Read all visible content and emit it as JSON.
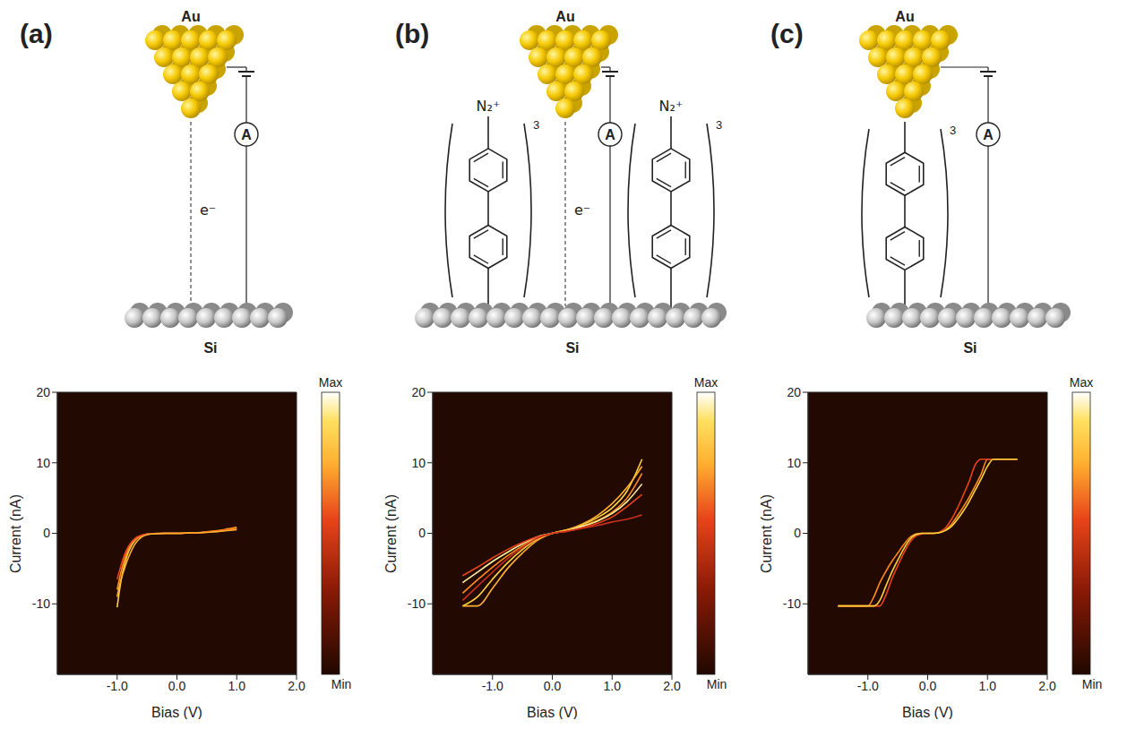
{
  "schematics": [
    {
      "label": "(a)",
      "tip": "Au",
      "surface": "Si",
      "electron": "e⁻",
      "meter": "A"
    },
    {
      "label": "(b)",
      "tip": "Au",
      "surface": "Si",
      "electron": "e⁻",
      "meter": "A",
      "molecule": {
        "repeat": 3,
        "end_group": "N₂⁺"
      }
    },
    {
      "label": "(c)",
      "tip": "Au",
      "surface": "Si",
      "meter": "A",
      "molecule": {
        "repeat": 3
      }
    }
  ],
  "chart_data": [
    {
      "type": "line",
      "x_label": "Bias (V)",
      "y_label": "Current (nA)",
      "xlim": [
        -2,
        2
      ],
      "ylim": [
        -20,
        20
      ],
      "xticks": [
        {
          "value": -1,
          "label": "-1.0"
        },
        {
          "value": 0,
          "label": "0.0"
        },
        {
          "value": 1,
          "label": "1.0"
        },
        {
          "value": 2,
          "label": "2.0"
        }
      ],
      "yticks": [
        -10,
        0,
        10,
        20
      ],
      "grid": false,
      "x": [
        -1.0,
        -0.95,
        -0.9,
        -0.85,
        -0.8,
        -0.7,
        -0.6,
        -0.5,
        -0.4,
        -0.2,
        0,
        0.2,
        0.4,
        0.6,
        0.8,
        1.0
      ],
      "series": [
        {
          "color": "#ffd23c",
          "values": [
            -10.5,
            -7.5,
            -5.2,
            -3.6,
            -2.4,
            -1.0,
            -0.4,
            -0.15,
            -0.05,
            0,
            0,
            0.05,
            0.1,
            0.25,
            0.45,
            0.7
          ]
        },
        {
          "color": "#ff8c1a",
          "values": [
            -8,
            -6,
            -4.3,
            -3,
            -2,
            -0.9,
            -0.35,
            -0.1,
            -0.05,
            0,
            0,
            0.05,
            0.12,
            0.3,
            0.55,
            0.9
          ]
        },
        {
          "color": "#e8441a",
          "values": [
            -6.5,
            -5,
            -3.6,
            -2.5,
            -1.7,
            -0.7,
            -0.3,
            -0.1,
            -0.03,
            0,
            0,
            0.04,
            0.1,
            0.22,
            0.4,
            0.6
          ]
        },
        {
          "color": "#ffb030",
          "values": [
            -9,
            -7,
            -5.6,
            -4.3,
            -3.2,
            -1.5,
            -0.6,
            -0.2,
            -0.08,
            0,
            0,
            0.05,
            0.1,
            0.2,
            0.35,
            0.5
          ]
        }
      ],
      "colorbar": {
        "range": [
          0,
          1
        ],
        "ticks": [
          {
            "value": 1,
            "label": "Max"
          },
          {
            "value": 0,
            "label": "Min"
          }
        ]
      }
    },
    {
      "type": "line",
      "x_label": "Bias (V)",
      "y_label": "Current (nA)",
      "xlim": [
        -2,
        2
      ],
      "ylim": [
        -20,
        20
      ],
      "xticks": [
        {
          "value": -1,
          "label": "-1.0"
        },
        {
          "value": 0,
          "label": "0.0"
        },
        {
          "value": 1,
          "label": "1.0"
        },
        {
          "value": 2,
          "label": "2.0"
        }
      ],
      "yticks": [
        -10,
        0,
        10,
        20
      ],
      "grid": false,
      "x": [
        -1.5,
        -1.25,
        -1.0,
        -0.75,
        -0.5,
        -0.25,
        0,
        0.25,
        0.5,
        0.75,
        1.0,
        1.25,
        1.5
      ],
      "series": [
        {
          "color": "#ffd23c",
          "values": [
            -10.3,
            -9,
            -6.5,
            -4.2,
            -2.3,
            -0.8,
            0,
            0.5,
            1.2,
            2.2,
            3.6,
            6,
            10.5
          ]
        },
        {
          "color": "#ff8c1a",
          "values": [
            -8.5,
            -6.6,
            -4.8,
            -3.2,
            -1.8,
            -0.6,
            0,
            0.4,
            1,
            1.8,
            3,
            5,
            8.5
          ]
        },
        {
          "color": "#fff0a0",
          "values": [
            -7,
            -5.5,
            -4,
            -2.7,
            -1.5,
            -0.5,
            0,
            0.4,
            1,
            1.7,
            2.8,
            4.5,
            7
          ]
        },
        {
          "color": "#e8441a",
          "values": [
            -6,
            -4.8,
            -3.5,
            -2.3,
            -1.3,
            -0.5,
            0,
            0.3,
            0.8,
            1.4,
            2.3,
            3.8,
            5.5
          ]
        },
        {
          "color": "#ffb030",
          "values": [
            -10.3,
            -10.3,
            -7.8,
            -5,
            -2.8,
            -1,
            0,
            0.5,
            1.3,
            2.5,
            4.2,
            6.5,
            9.5
          ]
        },
        {
          "color": "#c8301a",
          "values": [
            -9.5,
            -7.5,
            -5.5,
            -3.6,
            -2,
            -0.7,
            0,
            0.3,
            0.7,
            1.1,
            1.6,
            2,
            2.6
          ]
        }
      ],
      "colorbar": {
        "range": [
          0,
          1
        ],
        "ticks": [
          {
            "value": 1,
            "label": "Max"
          },
          {
            "value": 0,
            "label": "Min"
          }
        ]
      }
    },
    {
      "type": "line",
      "x_label": "Bias (V)",
      "y_label": "Current (nA)",
      "xlim": [
        -2,
        2
      ],
      "ylim": [
        -20,
        20
      ],
      "xticks": [
        {
          "value": -1,
          "label": "-1.0"
        },
        {
          "value": 0,
          "label": "0.0"
        },
        {
          "value": 1,
          "label": "1.0"
        },
        {
          "value": 2,
          "label": "2.0"
        }
      ],
      "yticks": [
        -10,
        0,
        10,
        20
      ],
      "grid": false,
      "x": [
        -1.5,
        -1.25,
        -1.0,
        -0.9,
        -0.8,
        -0.7,
        -0.6,
        -0.5,
        -0.4,
        -0.3,
        -0.2,
        -0.1,
        0,
        0.1,
        0.2,
        0.3,
        0.4,
        0.5,
        0.6,
        0.7,
        0.8,
        0.9,
        1.0,
        1.1,
        1.25,
        1.5
      ],
      "series": [
        {
          "color": "#ff8c1a",
          "values": [
            -10.3,
            -10.3,
            -10.3,
            -9,
            -7,
            -5.4,
            -4,
            -2.8,
            -1.6,
            -0.6,
            -0.1,
            0,
            0,
            0,
            0.1,
            0.5,
            1.3,
            2.5,
            3.8,
            5.2,
            6.8,
            8.5,
            10.5,
            10.5,
            10.5,
            10.5
          ]
        },
        {
          "color": "#e8441a",
          "values": [
            -10.3,
            -10.3,
            -10.3,
            -10.3,
            -10.3,
            -8.8,
            -6.5,
            -4.6,
            -2.8,
            -1.3,
            -0.4,
            -0.1,
            0,
            0,
            0.2,
            0.8,
            2,
            3.6,
            5.5,
            7.5,
            9.8,
            10.5,
            10.5,
            10.5,
            10.5,
            10.5
          ]
        },
        {
          "color": "#ffd23c",
          "values": [
            -10.3,
            -10.3,
            -10.3,
            -10.3,
            -9.5,
            -7.5,
            -5.5,
            -3.8,
            -2.2,
            -0.9,
            -0.2,
            0,
            0,
            0,
            0.1,
            0.4,
            1.0,
            2.0,
            3.2,
            4.6,
            6.2,
            7.8,
            9.5,
            10.5,
            10.5,
            10.5
          ]
        }
      ],
      "colorbar": {
        "range": [
          0,
          1
        ],
        "ticks": [
          {
            "value": 1,
            "label": "Max"
          },
          {
            "value": 0,
            "label": "Min"
          }
        ]
      }
    }
  ]
}
